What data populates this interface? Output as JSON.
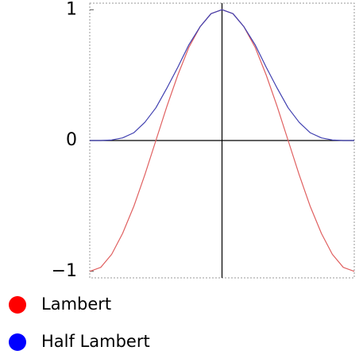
{
  "chart_data": {
    "type": "line",
    "x": [
      -3.14,
      -2.88,
      -2.62,
      -2.36,
      -2.09,
      -1.83,
      -1.57,
      -1.31,
      -1.05,
      -0.79,
      -0.52,
      -0.26,
      0,
      0.26,
      0.52,
      0.79,
      1.05,
      1.31,
      1.57,
      1.83,
      2.09,
      2.36,
      2.62,
      2.88,
      3.14
    ],
    "series": [
      {
        "name": "Lambert",
        "color": "#ff0000",
        "line_color": "#e06060",
        "values": [
          -1,
          -0.97,
          -0.87,
          -0.71,
          -0.5,
          -0.26,
          0,
          0.26,
          0.5,
          0.71,
          0.87,
          0.97,
          1,
          0.97,
          0.87,
          0.71,
          0.5,
          0.26,
          0,
          -0.26,
          -0.5,
          -0.71,
          -0.87,
          -0.97,
          -1
        ]
      },
      {
        "name": "Half Lambert",
        "color": "#0000ff",
        "line_color": "#4040b0",
        "values": [
          0,
          0,
          0.004,
          0.02,
          0.06,
          0.14,
          0.25,
          0.4,
          0.56,
          0.73,
          0.87,
          0.97,
          1,
          0.97,
          0.87,
          0.73,
          0.56,
          0.4,
          0.25,
          0.14,
          0.06,
          0.02,
          0.004,
          0,
          0
        ]
      }
    ],
    "xlim": [
      -3.14,
      3.14
    ],
    "ylim": [
      -1.05,
      1.05
    ],
    "yticks": [
      {
        "value": -1,
        "label": "−1"
      },
      0,
      1
    ]
  }
}
